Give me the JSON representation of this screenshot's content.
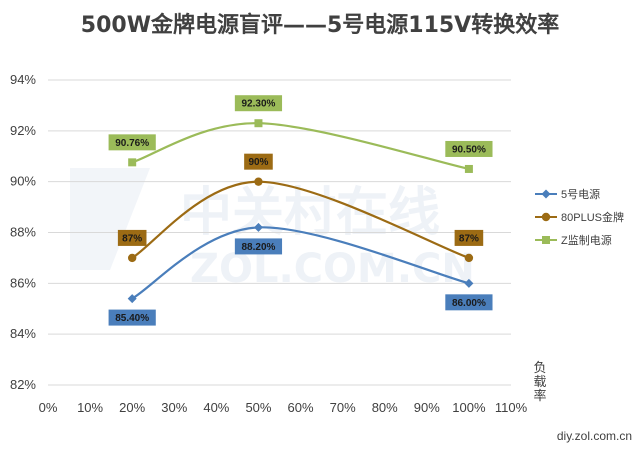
{
  "chart_data": {
    "type": "line",
    "title": "500W金牌电源盲评——5号电源115V转换效率",
    "ylabel": "负载率",
    "xlabel": "",
    "x_ticks": [
      "0%",
      "10%",
      "20%",
      "30%",
      "40%",
      "50%",
      "60%",
      "70%",
      "80%",
      "90%",
      "100%",
      "110%"
    ],
    "y_ticks": [
      "82%",
      "84%",
      "86%",
      "88%",
      "90%",
      "92%",
      "94%"
    ],
    "xlim": [
      0,
      110
    ],
    "ylim": [
      82,
      94
    ],
    "grid": "horizontal",
    "legend_position": "right",
    "x": [
      20,
      50,
      100
    ],
    "series": [
      {
        "name": "5号电源",
        "values": [
          85.4,
          88.2,
          86.0
        ],
        "labels": [
          "85.40%",
          "88.20%",
          "86.00%"
        ],
        "color": "#4a7ebb",
        "marker": "diamond"
      },
      {
        "name": "80PLUS金牌",
        "values": [
          87,
          90,
          87
        ],
        "labels": [
          "87%",
          "90%",
          "87%"
        ],
        "color": "#9c6b14",
        "marker": "circle"
      },
      {
        "name": "Z监制电源",
        "values": [
          90.76,
          92.3,
          90.5
        ],
        "labels": [
          "90.76%",
          "92.30%",
          "90.50%"
        ],
        "color": "#9bbb59",
        "marker": "square"
      }
    ],
    "watermark": [
      "中关村在线",
      "ZOL.COM.CN"
    ],
    "source": "diy.zol.com.cn"
  }
}
